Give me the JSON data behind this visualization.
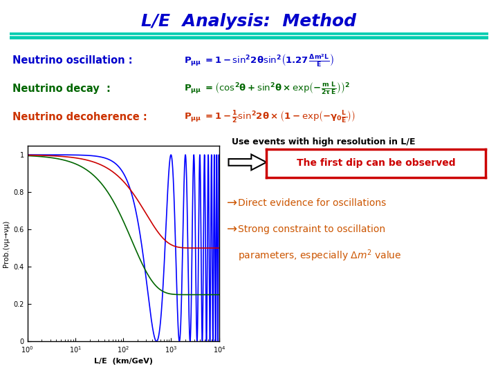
{
  "title": "L/E  Analysis:  Method",
  "title_color": "#0000CC",
  "title_fontsize": 18,
  "separator_color": "#00CDB0",
  "bg_color": "#FFFFFF",
  "row1_label": "Neutrino oscillation :",
  "row2_label": "Neutrino decay  :",
  "row3_label": "Neutrino decoherence :",
  "row1_color": "#0000CC",
  "row2_color": "#006600",
  "row3_color": "#CC3300",
  "use_events_text": "Use events with high resolution in L/E",
  "dip_text": "The first dip can be observed",
  "xlabel": "L/E  (km/GeV)",
  "ylabel": "Prob.(νμ→νμ)",
  "osc_color": "#0000FF",
  "decay_color": "#006600",
  "decoh_color": "#CC0000",
  "dip_box_color": "#CC0000",
  "bullet_color": "#CC5500",
  "dm2_value": 0.0025,
  "decay_scale": 200.0,
  "decoh_scale": 300.0
}
